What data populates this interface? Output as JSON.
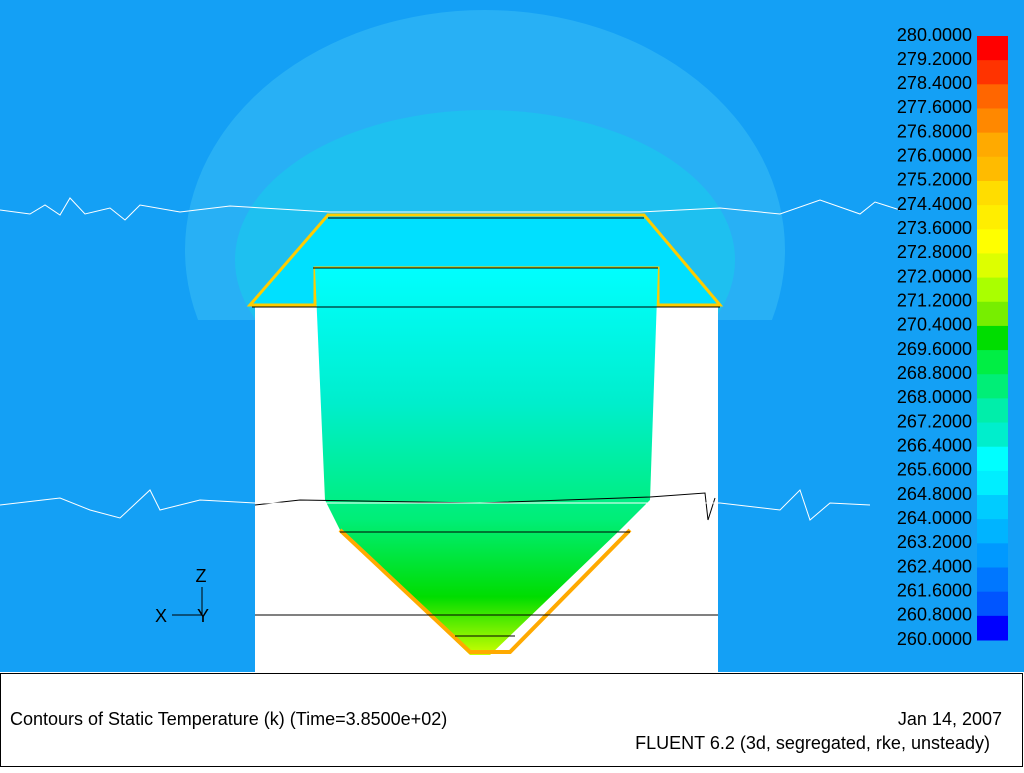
{
  "colorbar": {
    "labels": [
      "280.0000",
      "279.2000",
      "278.4000",
      "277.6000",
      "276.8000",
      "276.0000",
      "275.2000",
      "274.4000",
      "273.6000",
      "272.8000",
      "272.0000",
      "271.2000",
      "270.4000",
      "269.6000",
      "268.8000",
      "268.0000",
      "267.2000",
      "266.4000",
      "265.6000",
      "264.8000",
      "264.0000",
      "263.2000",
      "262.4000",
      "261.6000",
      "260.8000",
      "260.0000"
    ],
    "colors": [
      "#ff0000",
      "#ff3300",
      "#ff6600",
      "#ff8800",
      "#ffaa00",
      "#ffbb00",
      "#ffdd00",
      "#ffee00",
      "#ffff00",
      "#ddff00",
      "#aaff00",
      "#77ee00",
      "#00dd00",
      "#00ee44",
      "#00ee77",
      "#00eeaa",
      "#00eecc",
      "#00ffff",
      "#00eeff",
      "#00ccff",
      "#00b4ff",
      "#0099ff",
      "#0077ff",
      "#0055ff",
      "#0000ff"
    ]
  },
  "axes": {
    "z": "Z",
    "x": "X",
    "y": "Y"
  },
  "caption": {
    "title": "Contours of Static Temperature (k)  (Time=3.8500e+02)",
    "date": "Jan 14, 2007",
    "software": "FLUENT 6.2 (3d, segregated, rke, unsteady)"
  }
}
